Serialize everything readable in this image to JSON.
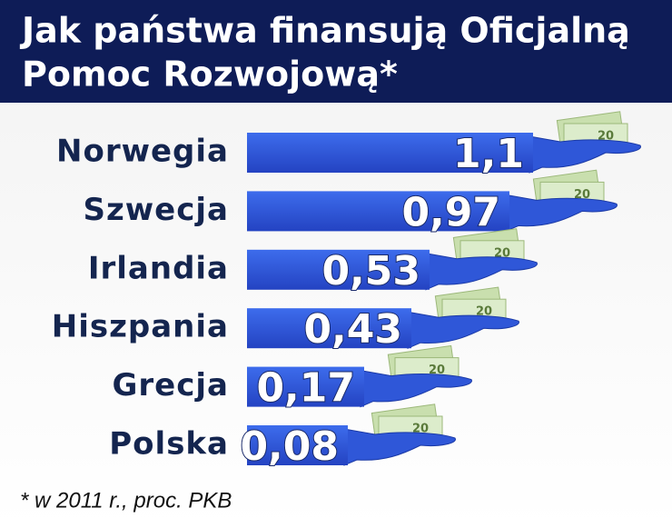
{
  "chart_data": {
    "type": "bar",
    "title": [
      "Jak państwa finansują Oficjalną",
      "Pomoc Rozwojową*"
    ],
    "categories": [
      "Norwegia",
      "Szwecja",
      "Irlandia",
      "Hiszpania",
      "Grecja",
      "Polska"
    ],
    "values": [
      1.1,
      0.97,
      0.53,
      0.43,
      0.17,
      0.08
    ],
    "value_labels": [
      "1,1",
      "0,97",
      "0,53",
      "0,43",
      "0,17",
      "0,08"
    ],
    "color": "#2f57d8",
    "banknote_label": "20",
    "note": "* w 2011 r., proc. PKB"
  }
}
